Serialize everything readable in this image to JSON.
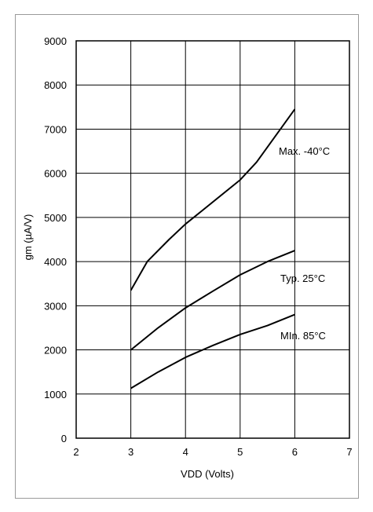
{
  "chart_data": {
    "type": "line",
    "xlabel": "VDD (Volts)",
    "ylabel": "gm (µA/V)",
    "xlim": [
      2,
      7
    ],
    "ylim": [
      0,
      9000
    ],
    "xticks": [
      "2",
      "3",
      "4",
      "5",
      "6",
      "7"
    ],
    "yticks": [
      "0",
      "1000",
      "2000",
      "3000",
      "4000",
      "5000",
      "6000",
      "7000",
      "8000",
      "9000"
    ],
    "grid": true,
    "series": [
      {
        "name": "Max. -40°C",
        "x": [
          3,
          3.3,
          3.7,
          4,
          4.3,
          5,
          5.3,
          6
        ],
        "y": [
          3350,
          4000,
          4500,
          4850,
          5150,
          5850,
          6250,
          7450
        ]
      },
      {
        "name": "Typ. 25°C",
        "x": [
          3,
          3.5,
          4,
          4.5,
          5,
          5.5,
          6
        ],
        "y": [
          2000,
          2500,
          2950,
          3330,
          3700,
          4000,
          4250
        ]
      },
      {
        "name": "MIn. 85°C",
        "x": [
          3,
          3.5,
          4,
          4.5,
          5,
          5.5,
          6
        ],
        "y": [
          1130,
          1500,
          1830,
          2100,
          2350,
          2550,
          2800
        ]
      }
    ]
  }
}
